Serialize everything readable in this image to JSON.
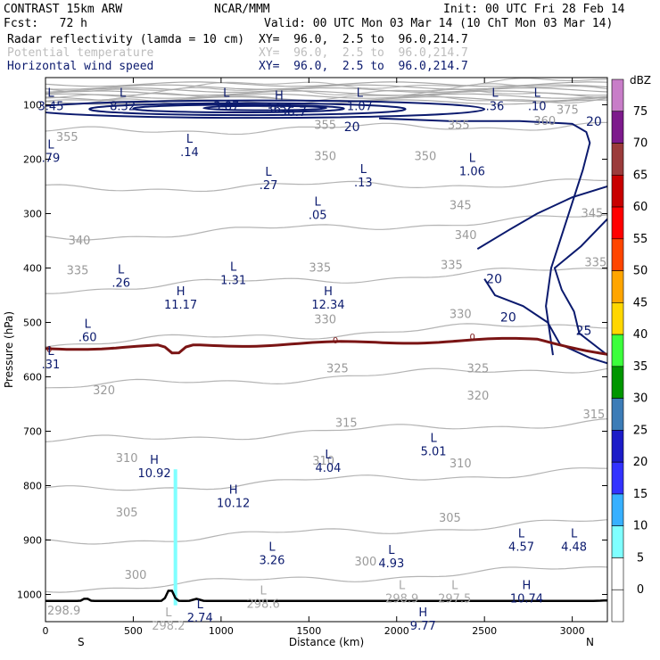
{
  "header": {
    "model": "CONTRAST 15km ARW",
    "org": "NCAR/MMM",
    "init": "Init: 00 UTC Fri 28 Feb 14",
    "fcst": "Fcst:   72 h",
    "valid": "Valid: 00 UTC Mon 03 Mar 14 (10 ChT Mon 03 Mar 14)",
    "fields": [
      {
        "name": "Radar reflectivity (lamda = 10 cm)",
        "xy": "XY=  96.0,  2.5 to  96.0,214.7",
        "color": "#000000"
      },
      {
        "name": "Potential temperature",
        "xy": "XY=  96.0,  2.5 to  96.0,214.7",
        "color": "#bdbdbd"
      },
      {
        "name": "Horizontal wind speed",
        "xy": "XY=  96.0,  2.5 to  96.0,214.7",
        "color": "#0b1a6e"
      }
    ]
  },
  "chart_data": {
    "type": "contour_cross_section",
    "title": "Radar reflectivity / Potential temperature / Horizontal wind speed",
    "xlabel": "Distance (km)",
    "ylabel": "Pressure (hPa)",
    "xlim": [
      0,
      3200
    ],
    "ylim": [
      1050,
      50
    ],
    "x_ticks": [
      0,
      500,
      1000,
      1500,
      2000,
      2500,
      3000
    ],
    "y_ticks": [
      100,
      200,
      300,
      400,
      500,
      600,
      700,
      800,
      900,
      1000
    ],
    "x_end_labels": {
      "left": "S",
      "right": "N"
    },
    "colorbar": {
      "unit": "dBZ",
      "levels": [
        "0",
        "5",
        "10",
        "15",
        "20",
        "25",
        "30",
        "35",
        "40",
        "45",
        "50",
        "55",
        "60",
        "65",
        "70",
        "75"
      ],
      "colors": [
        "#ffffff",
        "#ffffff",
        "#7fffff",
        "#37b0ff",
        "#3232ff",
        "#1c1cc8",
        "#3c7cb7",
        "#009600",
        "#3cff3c",
        "#ffd700",
        "#ffa500",
        "#ff4500",
        "#ff0000",
        "#c80000",
        "#9b3b3b",
        "#7d1a8c",
        "#c87dc8"
      ]
    },
    "theta_labels": [
      {
        "v": "355",
        "x": 60,
        "p": 160
      },
      {
        "v": "355",
        "x": 1530,
        "p": 138
      },
      {
        "v": "355",
        "x": 2290,
        "p": 138
      },
      {
        "v": "360",
        "x": 2780,
        "p": 130
      },
      {
        "v": "375",
        "x": 2910,
        "p": 110
      },
      {
        "v": "350",
        "x": 1530,
        "p": 195
      },
      {
        "v": "350",
        "x": 2100,
        "p": 195
      },
      {
        "v": "345",
        "x": 2300,
        "p": 285
      },
      {
        "v": "345",
        "x": 3050,
        "p": 300
      },
      {
        "v": "340",
        "x": 130,
        "p": 350
      },
      {
        "v": "340",
        "x": 2330,
        "p": 340
      },
      {
        "v": "335",
        "x": 120,
        "p": 405
      },
      {
        "v": "335",
        "x": 1500,
        "p": 400
      },
      {
        "v": "335",
        "x": 2250,
        "p": 395
      },
      {
        "v": "335",
        "x": 3070,
        "p": 390
      },
      {
        "v": "330",
        "x": 1530,
        "p": 495
      },
      {
        "v": "330",
        "x": 2300,
        "p": 485
      },
      {
        "v": "325",
        "x": 1600,
        "p": 585
      },
      {
        "v": "325",
        "x": 2400,
        "p": 585
      },
      {
        "v": "320",
        "x": 270,
        "p": 625
      },
      {
        "v": "320",
        "x": 2400,
        "p": 635
      },
      {
        "v": "315",
        "x": 1650,
        "p": 685
      },
      {
        "v": "315",
        "x": 3060,
        "p": 670
      },
      {
        "v": "310",
        "x": 400,
        "p": 750
      },
      {
        "v": "310",
        "x": 1520,
        "p": 755
      },
      {
        "v": "310",
        "x": 2300,
        "p": 760
      },
      {
        "v": "305",
        "x": 400,
        "p": 850
      },
      {
        "v": "305",
        "x": 2240,
        "p": 860
      },
      {
        "v": "300",
        "x": 450,
        "p": 965
      },
      {
        "v": "300",
        "x": 1760,
        "p": 940
      },
      {
        "v": "298.9",
        "x": -50,
        "p": 1030
      }
    ],
    "theta_lines_p_at_x0": [
      70,
      80,
      90,
      100,
      150,
      255,
      345,
      440,
      540,
      620,
      720,
      810,
      905,
      990
    ],
    "wind_labels": [
      {
        "v": "20",
        "x": 1700,
        "p": 140
      },
      {
        "v": "20",
        "x": 3080,
        "p": 130
      },
      {
        "v": "20",
        "x": 2510,
        "p": 420
      },
      {
        "v": "20",
        "x": 2590,
        "p": 490
      },
      {
        "v": "25",
        "x": 3020,
        "p": 515
      },
      {
        "v": "36.7",
        "x": 1330,
        "p": 112
      }
    ],
    "freezing_level_label": "0",
    "extrema": [
      {
        "t": "L",
        "v": "3.45",
        "x": -40,
        "p": 85
      },
      {
        "t": "L",
        "v": "8.32",
        "x": 440,
        "p": 85
      },
      {
        "t": "L",
        "v": "3.87",
        "x": 1030,
        "p": 85
      },
      {
        "t": "L",
        "v": "1.07",
        "x": 1790,
        "p": 85
      },
      {
        "t": "L",
        "v": ".36",
        "x": 2560,
        "p": 85
      },
      {
        "t": "L",
        "v": ".10",
        "x": 2800,
        "p": 85
      },
      {
        "t": "H",
        "v": "36.7",
        "x": 1330,
        "p": 90
      },
      {
        "t": "L",
        "v": ".79",
        "x": -20,
        "p": 180
      },
      {
        "t": "L",
        "v": ".14",
        "x": 820,
        "p": 170
      },
      {
        "t": "L",
        "v": ".27",
        "x": 1270,
        "p": 230
      },
      {
        "t": "L",
        "v": ".13",
        "x": 1810,
        "p": 225
      },
      {
        "t": "L",
        "v": "1.06",
        "x": 2430,
        "p": 205
      },
      {
        "t": "L",
        "v": ".05",
        "x": 1550,
        "p": 285
      },
      {
        "t": "L",
        "v": ".26",
        "x": 430,
        "p": 410
      },
      {
        "t": "L",
        "v": "1.31",
        "x": 1070,
        "p": 405
      },
      {
        "t": "H",
        "v": "11.17",
        "x": 770,
        "p": 450
      },
      {
        "t": "H",
        "v": "12.34",
        "x": 1610,
        "p": 450
      },
      {
        "t": "L",
        "v": ".60",
        "x": 240,
        "p": 510
      },
      {
        "t": "L",
        "v": ".31",
        "x": 0,
        "p": 560
      },
      {
        "t": "L",
        "v": "5.01",
        "x": 2210,
        "p": 720
      },
      {
        "t": "L",
        "v": "4.04",
        "x": 1610,
        "p": 750
      },
      {
        "t": "H",
        "v": "10.92",
        "x": 620,
        "p": 760
      },
      {
        "t": "H",
        "v": "10.12",
        "x": 1070,
        "p": 815
      },
      {
        "t": "L",
        "v": "3.26",
        "x": 1290,
        "p": 920
      },
      {
        "t": "L",
        "v": "4.93",
        "x": 1970,
        "p": 925
      },
      {
        "t": "L",
        "v": "4.57",
        "x": 2710,
        "p": 895
      },
      {
        "t": "L",
        "v": "4.48",
        "x": 3010,
        "p": 895
      },
      {
        "t": "H",
        "v": "10.74",
        "x": 2740,
        "p": 990
      },
      {
        "t": "L",
        "v": "2.74",
        "x": 880,
        "p": 1025
      },
      {
        "t": "H",
        "v": "9.77",
        "x": 2150,
        "p": 1040
      },
      {
        "t": "L",
        "v": "298.6",
        "x": 1240,
        "p": 1000
      },
      {
        "t": "L",
        "v": "298.9",
        "x": 2030,
        "p": 990
      },
      {
        "t": "L",
        "v": "297.5",
        "x": 2330,
        "p": 990
      },
      {
        "t": "L",
        "v": "298.2",
        "x": 700,
        "p": 1040
      }
    ],
    "reflectivity_spike": {
      "x": 740,
      "p_top": 770,
      "p_bottom": 1020,
      "dbz": "5-10"
    }
  }
}
